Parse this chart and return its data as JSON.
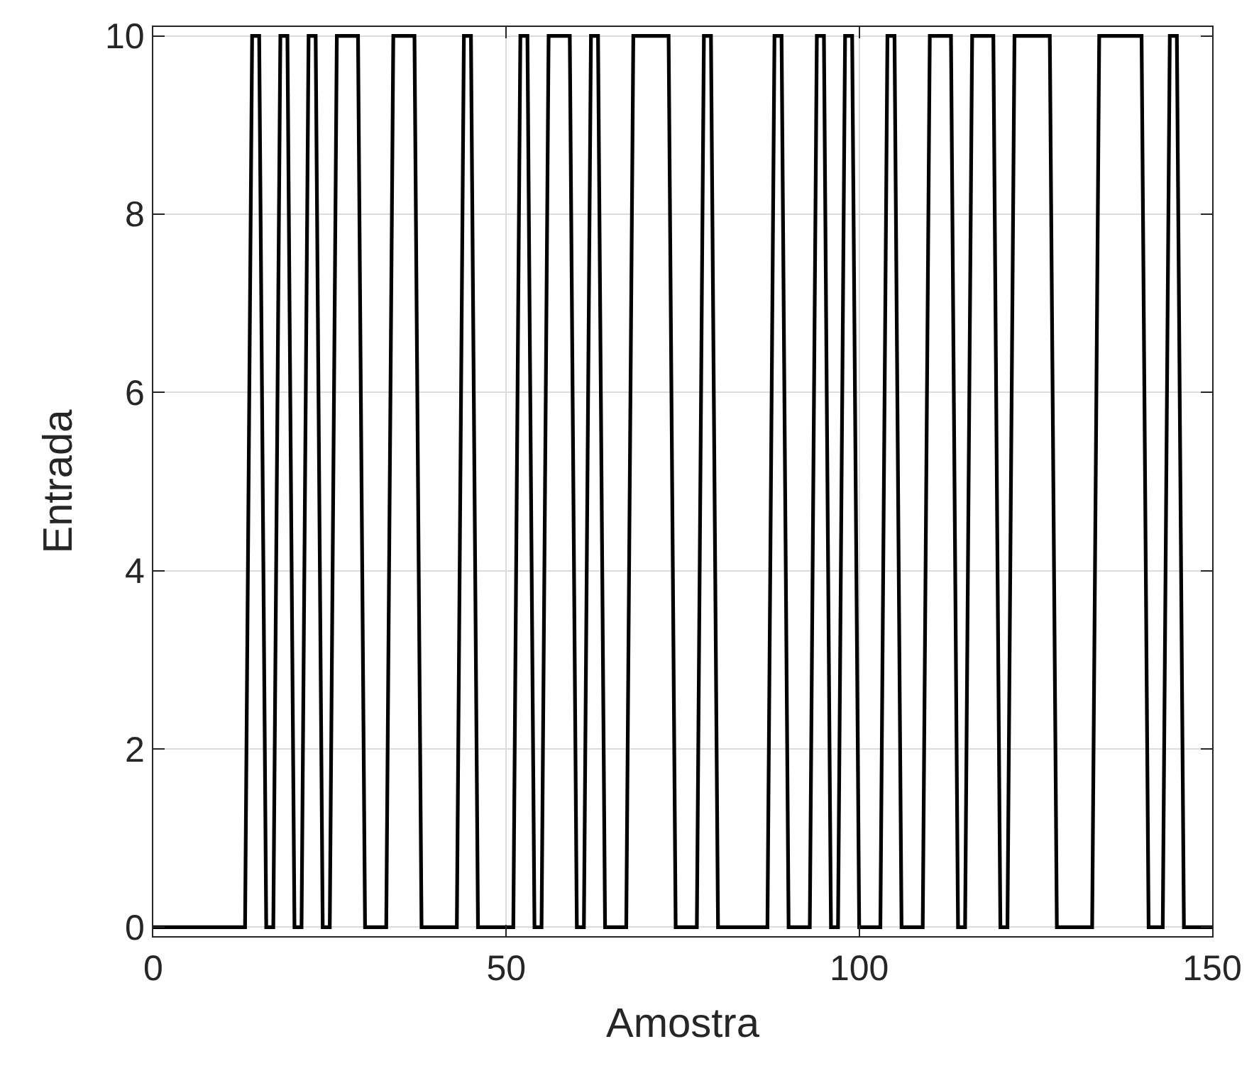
{
  "chart_data": {
    "type": "line",
    "xlabel": "Amostra",
    "ylabel": "Entrada",
    "x": [
      0,
      13,
      14,
      15,
      16,
      17,
      18,
      19,
      20,
      21,
      22,
      23,
      24,
      25,
      26,
      29,
      30,
      33,
      34,
      37,
      38,
      43,
      44,
      45,
      46,
      51,
      52,
      53,
      54,
      55,
      56,
      59,
      60,
      61,
      62,
      63,
      64,
      67,
      68,
      73,
      74,
      77,
      78,
      79,
      80,
      87,
      88,
      89,
      90,
      93,
      94,
      95,
      96,
      97,
      98,
      99,
      100,
      103,
      104,
      105,
      106,
      109,
      110,
      113,
      114,
      115,
      116,
      119,
      120,
      121,
      122,
      127,
      128,
      133,
      134,
      140,
      141,
      143,
      144,
      145,
      146,
      150
    ],
    "series": [
      {
        "color": "#000000",
        "values": [
          0,
          0,
          10,
          10,
          0,
          0,
          10,
          10,
          0,
          0,
          10,
          10,
          0,
          0,
          10,
          10,
          0,
          0,
          10,
          10,
          0,
          0,
          10,
          10,
          0,
          0,
          10,
          10,
          0,
          0,
          10,
          10,
          0,
          0,
          10,
          10,
          0,
          0,
          10,
          10,
          0,
          0,
          10,
          10,
          0,
          0,
          10,
          10,
          0,
          0,
          10,
          10,
          0,
          0,
          10,
          10,
          0,
          0,
          10,
          10,
          0,
          0,
          10,
          10,
          0,
          0,
          10,
          10,
          0,
          0,
          10,
          10,
          0,
          0,
          10,
          10,
          0,
          0,
          10,
          10,
          0,
          0
        ]
      }
    ],
    "xlim": [
      0,
      150
    ],
    "xticks": [
      0,
      50,
      100,
      150
    ],
    "ylim": [
      -0.1,
      10.1
    ],
    "yticks": [
      0,
      2,
      4,
      6,
      8,
      10
    ],
    "grid": true,
    "marker": "none",
    "line_style": "solid"
  }
}
